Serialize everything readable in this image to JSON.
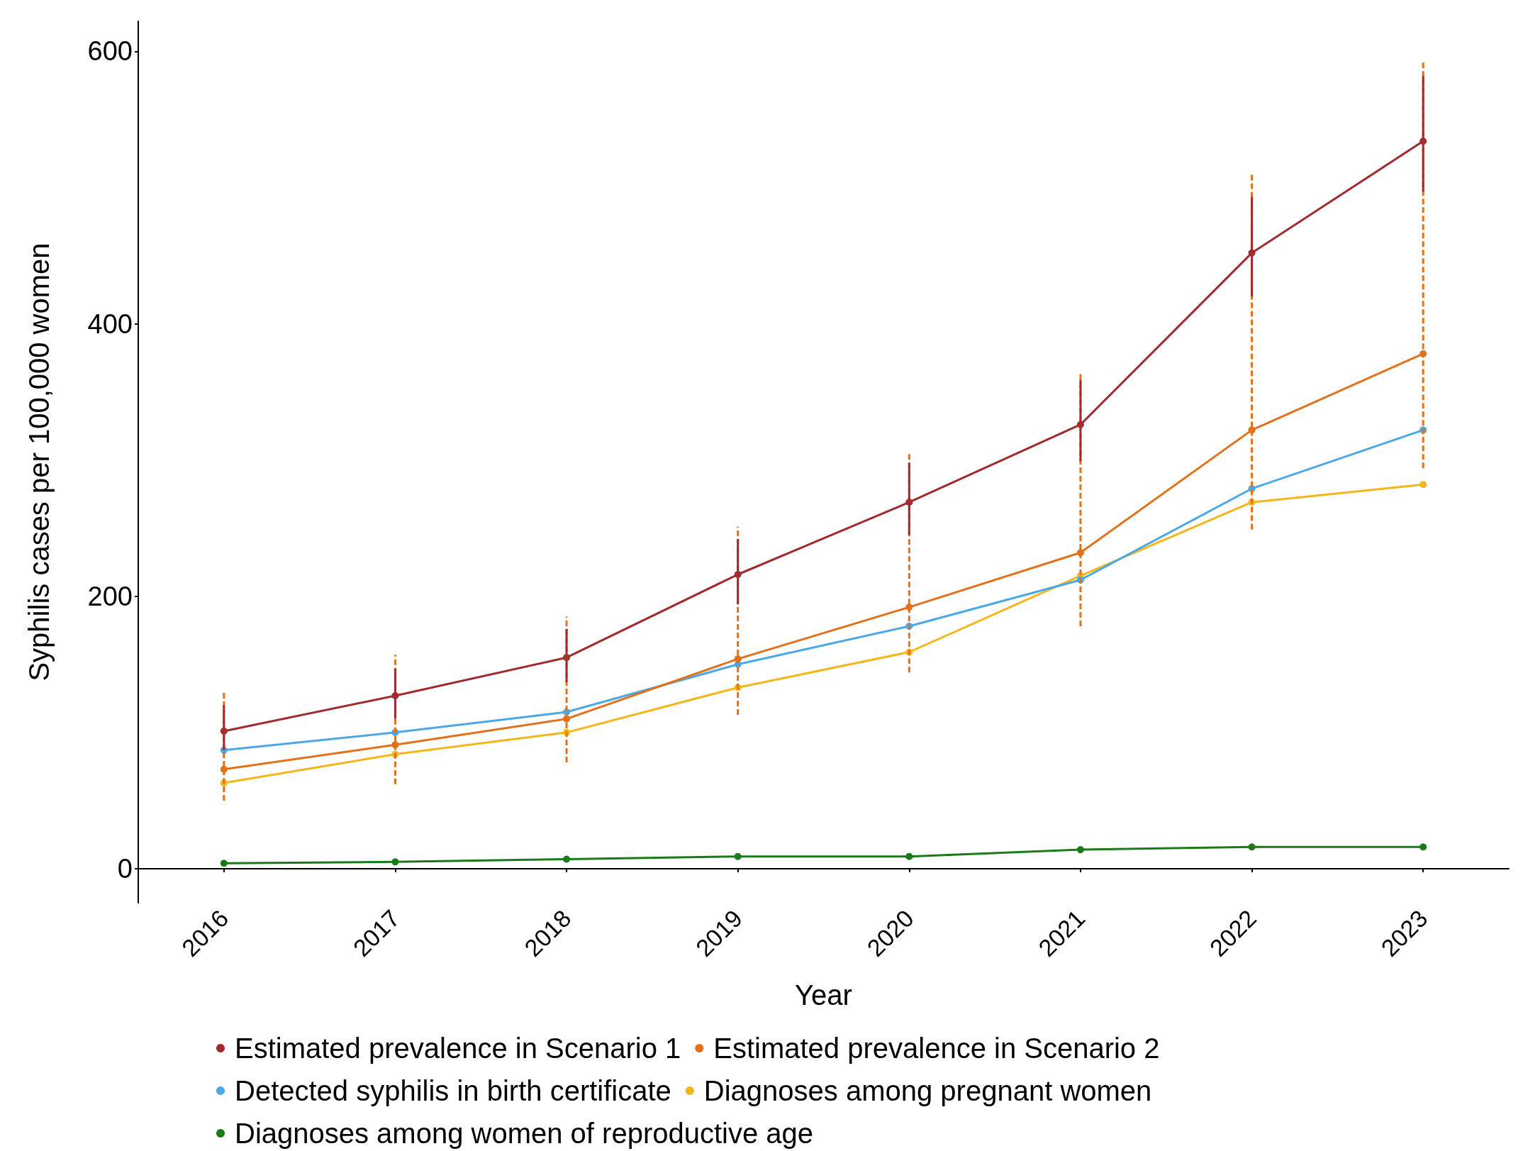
{
  "chart_data": {
    "type": "line",
    "xlabel": "Year",
    "ylabel": "Syphilis cases per 100,000 women",
    "categories": [
      "2016",
      "2017",
      "2018",
      "2019",
      "2020",
      "2021",
      "2022",
      "2023"
    ],
    "ylim": [
      -25,
      622
    ],
    "yticks": [
      0,
      200,
      400,
      600
    ],
    "grid": false,
    "legend": "bottom",
    "marker": "circle",
    "line_style": "solid",
    "series": [
      {
        "name": "Estimated prevalence in Scenario 1",
        "color": "#a12a2e",
        "values": [
          101,
          127,
          155,
          216,
          269,
          326,
          452,
          534
        ],
        "errors": [
          [
            87,
            120
          ],
          [
            110,
            147
          ],
          [
            137,
            176
          ],
          [
            194,
            242
          ],
          [
            245,
            298
          ],
          [
            299,
            359
          ],
          [
            420,
            493
          ],
          [
            497,
            582
          ]
        ]
      },
      {
        "name": "Estimated prevalence in Scenario 2",
        "color": "#e3701a",
        "values": [
          73,
          91,
          110,
          154,
          192,
          232,
          322,
          378
        ],
        "errors": [
          [
            50,
            130
          ],
          [
            62,
            157
          ],
          [
            78,
            185
          ],
          [
            113,
            251
          ],
          [
            144,
            306
          ],
          [
            178,
            363
          ],
          [
            249,
            510
          ],
          [
            294,
            592
          ]
        ]
      },
      {
        "name": "Detected syphilis in birth certificate",
        "color": "#4aa8e6",
        "values": [
          87,
          100,
          115,
          150,
          178,
          212,
          279,
          322
        ]
      },
      {
        "name": "Diagnoses among pregnant women",
        "color": "#f3b71a",
        "values": [
          63,
          84,
          100,
          133,
          159,
          215,
          269,
          282
        ]
      },
      {
        "name": "Diagnoses among women of reproductive age",
        "color": "#1a7a1a",
        "values": [
          4,
          5,
          7,
          9,
          9,
          14,
          16,
          16
        ]
      }
    ]
  }
}
